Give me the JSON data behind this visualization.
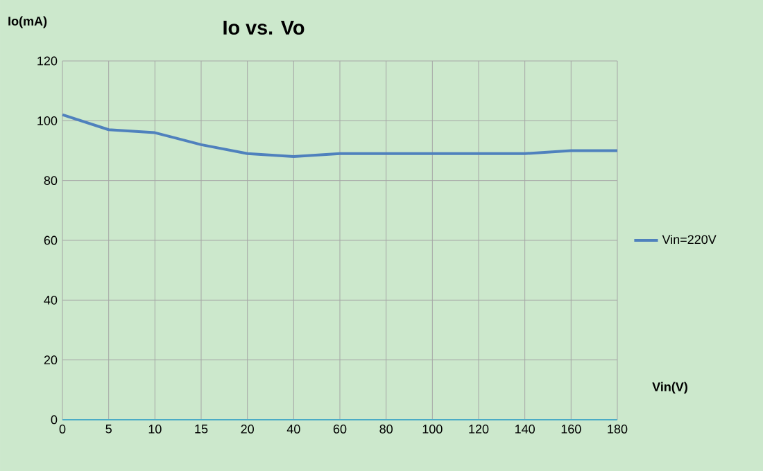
{
  "chart_data": {
    "type": "line",
    "title": "Io vs. Vo",
    "xlabel": "Vin(V)",
    "ylabel": "Io(mA)",
    "categories": [
      "0",
      "5",
      "10",
      "15",
      "20",
      "40",
      "60",
      "80",
      "100",
      "120",
      "140",
      "160",
      "180"
    ],
    "series": [
      {
        "name": "Vin=220V",
        "color": "#4f81bd",
        "values": [
          102,
          97,
          96,
          92,
          89,
          88,
          89,
          89,
          89,
          89,
          89,
          90,
          90
        ]
      }
    ],
    "ylim": [
      0,
      120
    ],
    "yticks": [
      0,
      20,
      40,
      60,
      80,
      100,
      120
    ],
    "grid": true,
    "legend": "right",
    "marker": "none",
    "line_style": "solid"
  }
}
